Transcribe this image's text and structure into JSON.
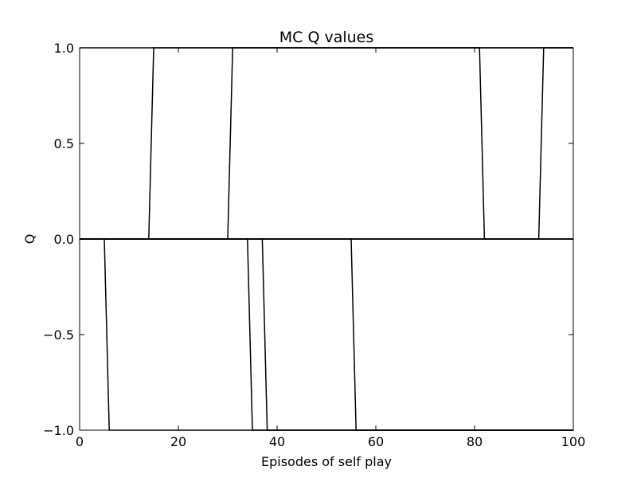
{
  "chart_data": {
    "type": "line",
    "title": "MC Q values",
    "xlabel": "Episodes of self play",
    "ylabel": "Q",
    "xlim": [
      0,
      100
    ],
    "ylim": [
      -1.0,
      1.0
    ],
    "x_ticks": [
      0,
      20,
      40,
      60,
      80,
      100
    ],
    "y_ticks": [
      -1.0,
      -0.5,
      0.0,
      0.5,
      1.0
    ],
    "x_tick_labels": [
      "0",
      "20",
      "40",
      "60",
      "80",
      "100"
    ],
    "y_tick_labels": [
      "−1.0",
      "−0.5",
      "0.0",
      "0.5",
      "1.0"
    ],
    "grid": false,
    "series_color": "#000000",
    "series": [
      {
        "x": [
          0,
          14,
          15,
          100
        ],
        "y": [
          0,
          0,
          1,
          1
        ]
      },
      {
        "x": [
          0,
          30,
          31,
          100
        ],
        "y": [
          0,
          0,
          1,
          1
        ]
      },
      {
        "x": [
          0,
          81,
          82,
          100
        ],
        "y": [
          1,
          1,
          0,
          0
        ]
      },
      {
        "x": [
          0,
          93,
          94,
          100
        ],
        "y": [
          0,
          0,
          1,
          1
        ]
      },
      {
        "x": [
          0,
          5,
          6,
          100
        ],
        "y": [
          0,
          0,
          -1,
          -1
        ]
      },
      {
        "x": [
          0,
          34,
          35,
          100
        ],
        "y": [
          0,
          0,
          -1,
          -1
        ]
      },
      {
        "x": [
          0,
          37,
          38,
          100
        ],
        "y": [
          0,
          0,
          -1,
          -1
        ]
      },
      {
        "x": [
          0,
          55,
          56,
          100
        ],
        "y": [
          0,
          0,
          -1,
          -1
        ]
      },
      {
        "x": [
          0,
          100
        ],
        "y": [
          0,
          0
        ]
      },
      {
        "x": [
          0,
          100
        ],
        "y": [
          0,
          0
        ]
      }
    ]
  }
}
